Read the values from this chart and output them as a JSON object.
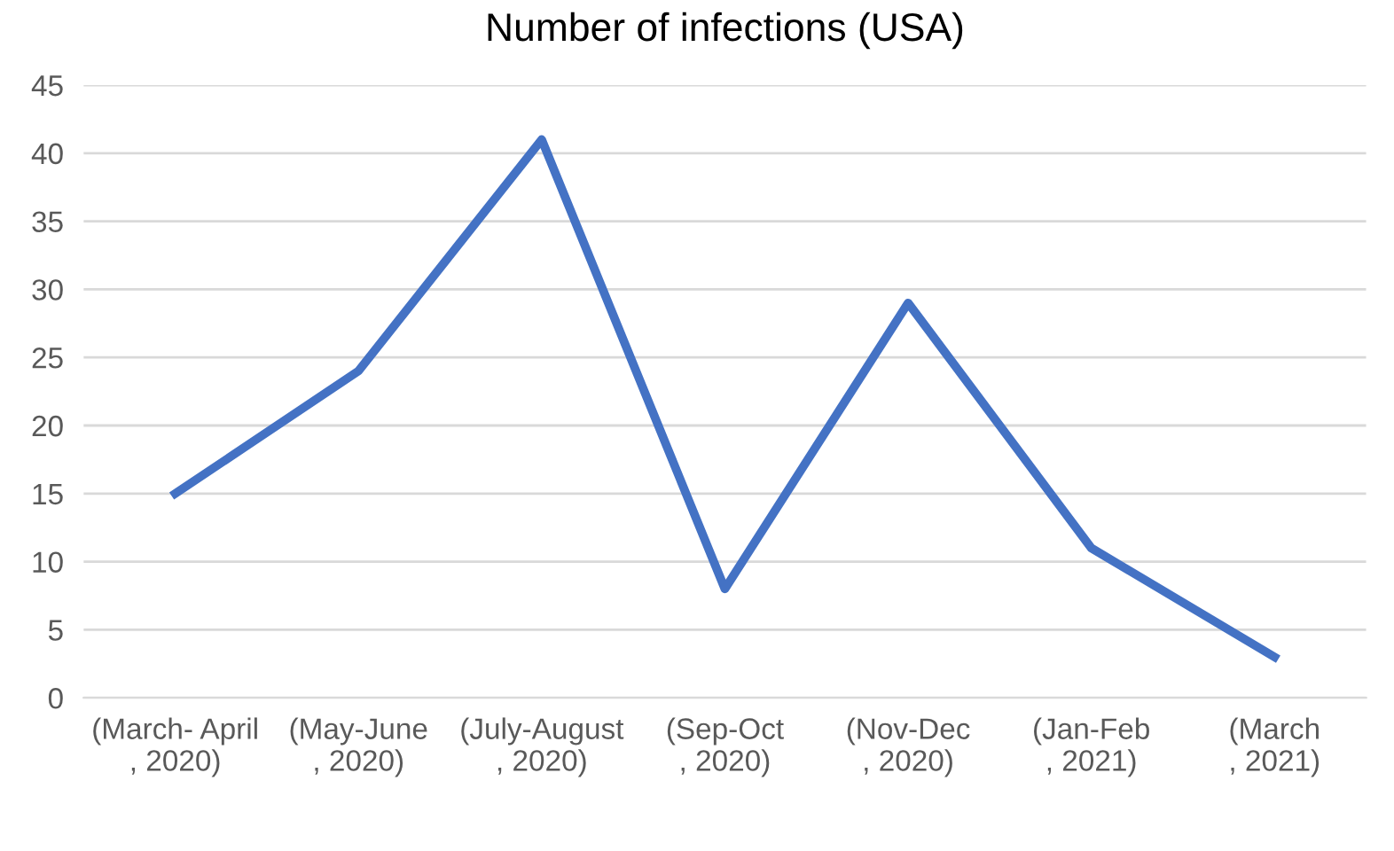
{
  "chart_data": {
    "type": "line",
    "title": "Number of infections (USA)",
    "categories": [
      "(March- April\n, 2020)",
      "(May-June\n, 2020)",
      "(July-August\n, 2020)",
      "(Sep-Oct\n, 2020)",
      "(Nov-Dec\n, 2020)",
      "(Jan-Feb\n, 2021)",
      "(March\n, 2021)"
    ],
    "series": [
      {
        "color": "#4472c4",
        "values": [
          15,
          24,
          41,
          8,
          29,
          11,
          3
        ]
      }
    ],
    "ylim": [
      0,
      45
    ],
    "yticks": [
      0,
      5,
      10,
      15,
      20,
      25,
      30,
      35,
      40,
      45
    ],
    "grid": "y",
    "marker": "none",
    "line_style": "solid",
    "legend": false
  }
}
